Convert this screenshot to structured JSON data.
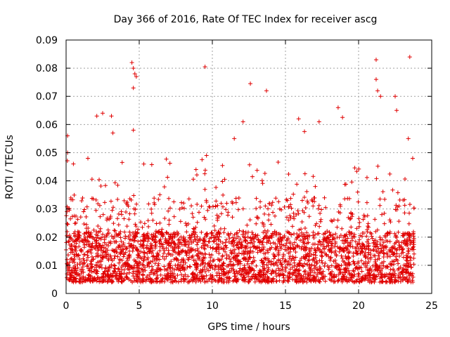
{
  "chart_data": {
    "type": "scatter",
    "title": "Day 366 of 2016, Rate Of TEC Index for receiver ascg",
    "xlabel": "GPS time / hours",
    "ylabel": "ROTI / TECUs",
    "xlim": [
      0,
      25
    ],
    "ylim": [
      0,
      0.09
    ],
    "x_ticks": [
      0,
      5,
      10,
      15,
      20,
      25
    ],
    "x_tick_labels": [
      "0",
      "5",
      "10",
      "15",
      "20",
      "25"
    ],
    "y_ticks": [
      0,
      0.01,
      0.02,
      0.03,
      0.04,
      0.05,
      0.06,
      0.07,
      0.08,
      0.09
    ],
    "y_tick_labels": [
      "0",
      "0.01",
      "0.02",
      "0.03",
      "0.04",
      "0.05",
      "0.06",
      "0.07",
      "0.08",
      "0.09"
    ],
    "grid": true,
    "marker": "+",
    "marker_color": "#e00000",
    "series": [
      {
        "name": "ROTI",
        "x_range": [
          0,
          23.8
        ],
        "typical_range": [
          0.004,
          0.03
        ],
        "highlighted_points": [
          {
            "x": 0.1,
            "y": 0.056
          },
          {
            "x": 0.1,
            "y": 0.05
          },
          {
            "x": 0.5,
            "y": 0.046
          },
          {
            "x": 2.1,
            "y": 0.063
          },
          {
            "x": 2.5,
            "y": 0.064
          },
          {
            "x": 3.1,
            "y": 0.063
          },
          {
            "x": 3.2,
            "y": 0.057
          },
          {
            "x": 4.5,
            "y": 0.082
          },
          {
            "x": 4.6,
            "y": 0.08
          },
          {
            "x": 4.7,
            "y": 0.078
          },
          {
            "x": 4.6,
            "y": 0.073
          },
          {
            "x": 4.8,
            "y": 0.077
          },
          {
            "x": 4.6,
            "y": 0.058
          },
          {
            "x": 9.5,
            "y": 0.0805
          },
          {
            "x": 9.6,
            "y": 0.049
          },
          {
            "x": 11.5,
            "y": 0.055
          },
          {
            "x": 12.1,
            "y": 0.061
          },
          {
            "x": 12.6,
            "y": 0.0745
          },
          {
            "x": 13.7,
            "y": 0.072
          },
          {
            "x": 15.9,
            "y": 0.062
          },
          {
            "x": 16.3,
            "y": 0.0575
          },
          {
            "x": 17.3,
            "y": 0.061
          },
          {
            "x": 18.6,
            "y": 0.066
          },
          {
            "x": 18.9,
            "y": 0.0625
          },
          {
            "x": 21.2,
            "y": 0.083
          },
          {
            "x": 21.2,
            "y": 0.076
          },
          {
            "x": 21.3,
            "y": 0.072
          },
          {
            "x": 21.5,
            "y": 0.07
          },
          {
            "x": 22.5,
            "y": 0.07
          },
          {
            "x": 22.6,
            "y": 0.065
          },
          {
            "x": 23.5,
            "y": 0.084
          },
          {
            "x": 23.4,
            "y": 0.055
          },
          {
            "x": 23.7,
            "y": 0.048
          }
        ]
      }
    ]
  }
}
